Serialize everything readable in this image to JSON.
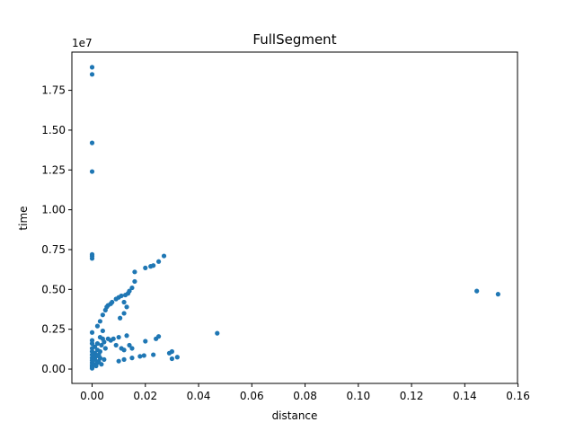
{
  "chart_data": {
    "type": "scatter",
    "title": "FullSegment",
    "xlabel": "distance",
    "ylabel": "time",
    "y_offset_label": "1e7",
    "xlim": [
      -0.0076,
      0.1598
    ],
    "ylim": [
      -0.9,
      19.9
    ],
    "y_scale": 10000000,
    "x_ticks": [
      0.0,
      0.02,
      0.04,
      0.06,
      0.08,
      0.1,
      0.12,
      0.14,
      0.16
    ],
    "x_tick_labels": [
      "0.00",
      "0.02",
      "0.04",
      "0.06",
      "0.08",
      "0.10",
      "0.12",
      "0.14",
      "0.16"
    ],
    "y_ticks": [
      0.0,
      2.5,
      5.0,
      7.5,
      10.0,
      12.5,
      15.0,
      17.5
    ],
    "y_tick_labels": [
      "0.00",
      "0.25",
      "0.50",
      "0.75",
      "1.00",
      "1.25",
      "1.50",
      "1.75"
    ],
    "grid": false,
    "color": "#1f77b4",
    "points": [
      {
        "x": 0.0,
        "y": 18.95
      },
      {
        "x": 0.0,
        "y": 18.5
      },
      {
        "x": 0.0,
        "y": 14.2
      },
      {
        "x": 0.0,
        "y": 12.4
      },
      {
        "x": 0.0,
        "y": 7.2
      },
      {
        "x": 0.0,
        "y": 7.1
      },
      {
        "x": 0.0,
        "y": 6.95
      },
      {
        "x": 0.0,
        "y": 2.3
      },
      {
        "x": 0.0,
        "y": 1.8
      },
      {
        "x": 0.0,
        "y": 1.6
      },
      {
        "x": 0.0,
        "y": 1.3
      },
      {
        "x": 0.0,
        "y": 1.1
      },
      {
        "x": 0.0,
        "y": 0.9
      },
      {
        "x": 0.0,
        "y": 0.7
      },
      {
        "x": 0.0,
        "y": 0.55
      },
      {
        "x": 0.0,
        "y": 0.4
      },
      {
        "x": 0.0,
        "y": 0.25
      },
      {
        "x": 0.0,
        "y": 0.15
      },
      {
        "x": 0.0,
        "y": 0.05
      },
      {
        "x": 0.001,
        "y": 0.3
      },
      {
        "x": 0.001,
        "y": 0.6
      },
      {
        "x": 0.001,
        "y": 1.0
      },
      {
        "x": 0.001,
        "y": 1.4
      },
      {
        "x": 0.0015,
        "y": 0.2
      },
      {
        "x": 0.0015,
        "y": 0.8
      },
      {
        "x": 0.002,
        "y": 0.4
      },
      {
        "x": 0.002,
        "y": 1.2
      },
      {
        "x": 0.002,
        "y": 1.6
      },
      {
        "x": 0.0025,
        "y": 0.5
      },
      {
        "x": 0.0025,
        "y": 0.9
      },
      {
        "x": 0.003,
        "y": 0.7
      },
      {
        "x": 0.003,
        "y": 1.1
      },
      {
        "x": 0.003,
        "y": 2.0
      },
      {
        "x": 0.0035,
        "y": 1.5
      },
      {
        "x": 0.0035,
        "y": 0.3
      },
      {
        "x": 0.004,
        "y": 2.4
      },
      {
        "x": 0.004,
        "y": 1.9
      },
      {
        "x": 0.0045,
        "y": 1.7
      },
      {
        "x": 0.0045,
        "y": 0.6
      },
      {
        "x": 0.005,
        "y": 1.3
      },
      {
        "x": 0.006,
        "y": 1.9
      },
      {
        "x": 0.007,
        "y": 1.8
      },
      {
        "x": 0.008,
        "y": 1.9
      },
      {
        "x": 0.002,
        "y": 2.7
      },
      {
        "x": 0.003,
        "y": 3.0
      },
      {
        "x": 0.004,
        "y": 3.4
      },
      {
        "x": 0.005,
        "y": 3.7
      },
      {
        "x": 0.0055,
        "y": 3.9
      },
      {
        "x": 0.006,
        "y": 4.0
      },
      {
        "x": 0.007,
        "y": 4.1
      },
      {
        "x": 0.0075,
        "y": 4.2
      },
      {
        "x": 0.009,
        "y": 4.4
      },
      {
        "x": 0.01,
        "y": 4.5
      },
      {
        "x": 0.011,
        "y": 4.6
      },
      {
        "x": 0.0125,
        "y": 4.65
      },
      {
        "x": 0.0135,
        "y": 4.75
      },
      {
        "x": 0.014,
        "y": 4.9
      },
      {
        "x": 0.015,
        "y": 5.1
      },
      {
        "x": 0.016,
        "y": 5.5
      },
      {
        "x": 0.016,
        "y": 6.1
      },
      {
        "x": 0.02,
        "y": 6.35
      },
      {
        "x": 0.022,
        "y": 6.45
      },
      {
        "x": 0.023,
        "y": 6.5
      },
      {
        "x": 0.025,
        "y": 6.75
      },
      {
        "x": 0.027,
        "y": 7.1
      },
      {
        "x": 0.0105,
        "y": 3.2
      },
      {
        "x": 0.012,
        "y": 3.5
      },
      {
        "x": 0.013,
        "y": 3.9
      },
      {
        "x": 0.012,
        "y": 4.2
      },
      {
        "x": 0.009,
        "y": 1.5
      },
      {
        "x": 0.01,
        "y": 2.0
      },
      {
        "x": 0.011,
        "y": 1.3
      },
      {
        "x": 0.012,
        "y": 1.2
      },
      {
        "x": 0.013,
        "y": 2.1
      },
      {
        "x": 0.014,
        "y": 1.5
      },
      {
        "x": 0.015,
        "y": 1.3
      },
      {
        "x": 0.01,
        "y": 0.5
      },
      {
        "x": 0.012,
        "y": 0.6
      },
      {
        "x": 0.015,
        "y": 0.7
      },
      {
        "x": 0.018,
        "y": 0.8
      },
      {
        "x": 0.0195,
        "y": 0.85
      },
      {
        "x": 0.02,
        "y": 1.75
      },
      {
        "x": 0.023,
        "y": 0.9
      },
      {
        "x": 0.024,
        "y": 1.9
      },
      {
        "x": 0.025,
        "y": 2.05
      },
      {
        "x": 0.029,
        "y": 1.0
      },
      {
        "x": 0.03,
        "y": 1.1
      },
      {
        "x": 0.03,
        "y": 0.65
      },
      {
        "x": 0.032,
        "y": 0.75
      },
      {
        "x": 0.047,
        "y": 2.25
      },
      {
        "x": 0.1445,
        "y": 4.9
      },
      {
        "x": 0.1525,
        "y": 4.7
      }
    ]
  }
}
